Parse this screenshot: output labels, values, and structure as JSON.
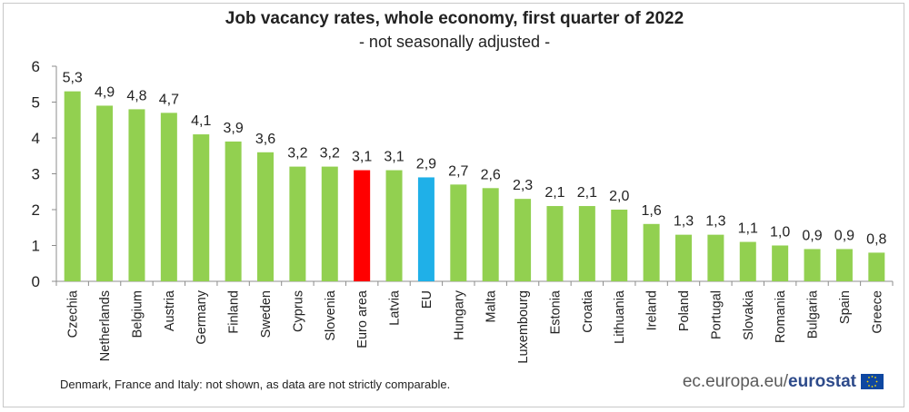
{
  "chart_data": {
    "type": "bar",
    "title": "Job vacancy rates, whole economy, first quarter of 2022",
    "subtitle": "- not seasonally adjusted -",
    "categories": [
      "Czechia",
      "Netherlands",
      "Belgium",
      "Austria",
      "Germany",
      "Finland",
      "Sweden",
      "Cyprus",
      "Slovenia",
      "Euro area",
      "Latvia",
      "EU",
      "Hungary",
      "Malta",
      "Luxembourg",
      "Estonia",
      "Croatia",
      "Lithuania",
      "Ireland",
      "Poland",
      "Portugal",
      "Slovakia",
      "Romania",
      "Bulgaria",
      "Spain",
      "Greece"
    ],
    "values": [
      5.3,
      4.9,
      4.8,
      4.7,
      4.1,
      3.9,
      3.6,
      3.2,
      3.2,
      3.1,
      3.1,
      2.9,
      2.7,
      2.6,
      2.3,
      2.1,
      2.1,
      2.0,
      1.6,
      1.3,
      1.3,
      1.1,
      1.0,
      0.9,
      0.9,
      0.8
    ],
    "value_labels": [
      "5,3",
      "4,9",
      "4,8",
      "4,7",
      "4,1",
      "3,9",
      "3,6",
      "3,2",
      "3,2",
      "3,1",
      "3,1",
      "2,9",
      "2,7",
      "2,6",
      "2,3",
      "2,1",
      "2,1",
      "2,0",
      "1,6",
      "1,3",
      "1,3",
      "1,1",
      "1,0",
      "0,9",
      "0,9",
      "0,8"
    ],
    "highlight": {
      "Euro area": "#ff0000",
      "EU": "#1fb0e8"
    },
    "default_color": "#92d050",
    "ylim": [
      0,
      6
    ],
    "yticks": [
      0,
      1,
      2,
      3,
      4,
      5,
      6
    ],
    "xlabel": "",
    "ylabel": "",
    "grid": false
  },
  "footnote": "Denmark, France and Italy: not shown, as data are not strictly comparable.",
  "source": {
    "prefix": "ec.europa.eu/",
    "brand": "eurostat"
  },
  "colors": {
    "flag": "#0e47a1",
    "flag_stars": "#ffdd00"
  }
}
